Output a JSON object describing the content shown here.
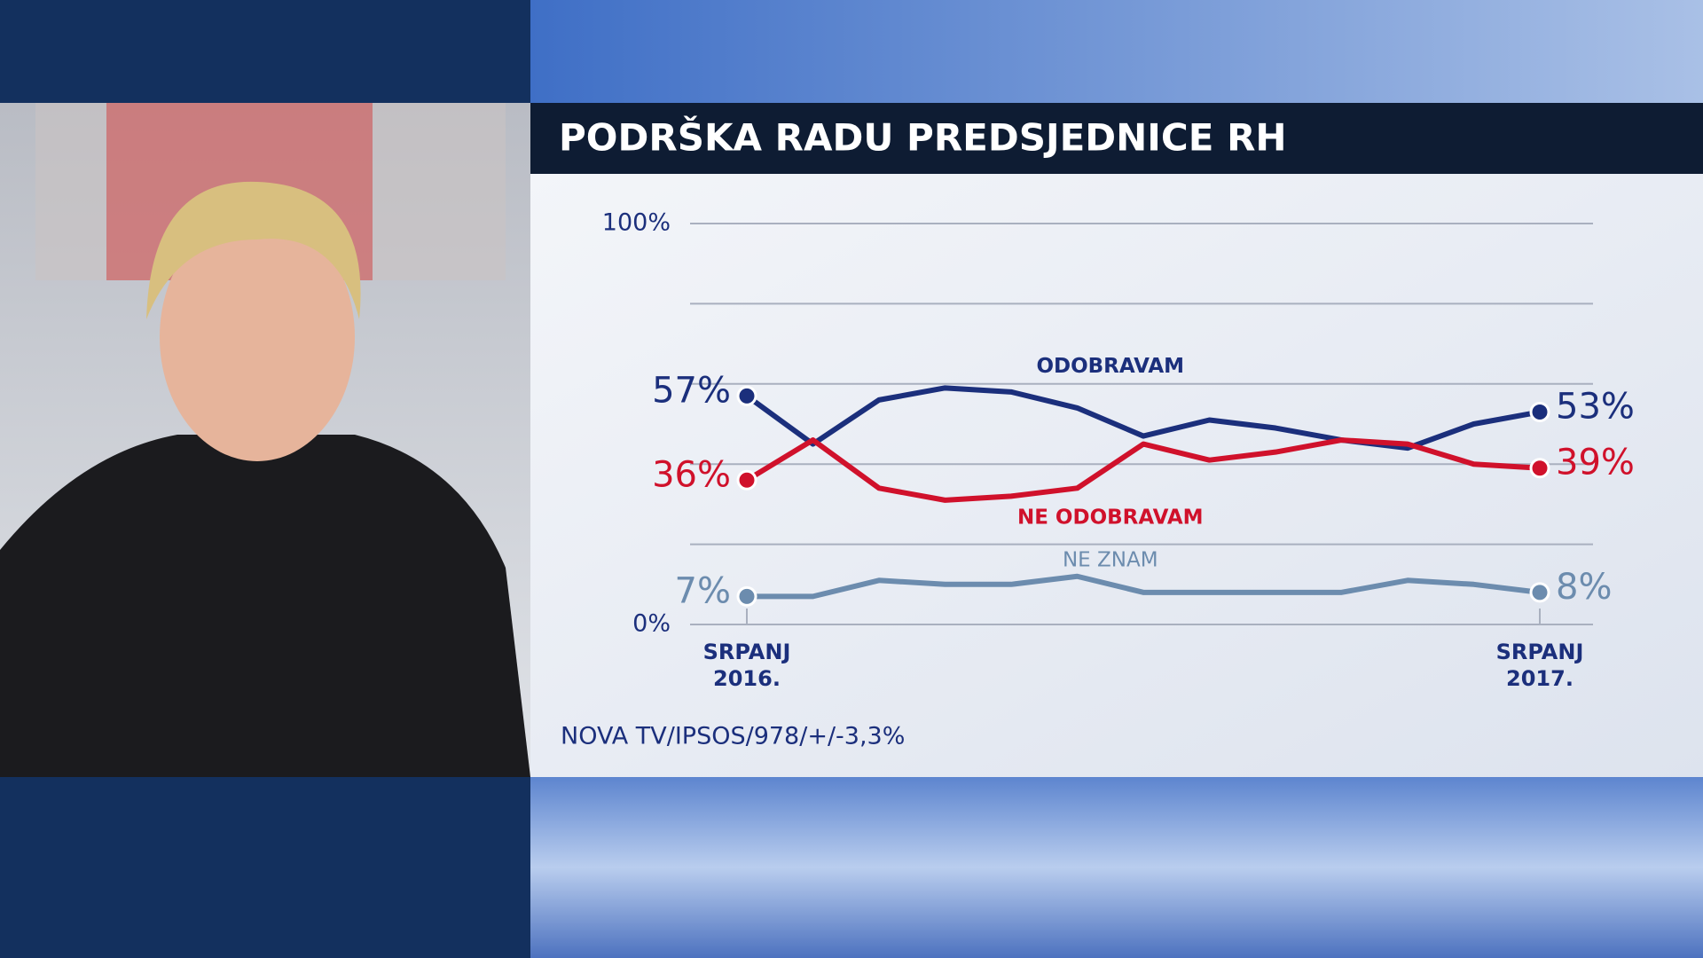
{
  "chart_data": {
    "type": "line",
    "title": "PODRŠKA RADU PREDSJEDNICE RH",
    "source": "NOVA TV/IPSOS/978/+/-3,3%",
    "categories": [
      "SRPANJ 2016.",
      null,
      null,
      null,
      null,
      null,
      null,
      null,
      null,
      null,
      null,
      null,
      "SRPANJ 2017."
    ],
    "ylim": [
      0,
      100
    ],
    "yticks": [
      {
        "value": 0,
        "label": "0%"
      },
      {
        "value": 20,
        "label": null
      },
      {
        "value": 40,
        "label": null
      },
      {
        "value": 60,
        "label": null
      },
      {
        "value": 80,
        "label": null
      },
      {
        "value": 100,
        "label": "100%"
      }
    ],
    "grid": true,
    "series": [
      {
        "name": "ODOBRAVAM",
        "color": "#1b2f7c",
        "values": [
          57,
          45,
          56,
          59,
          58,
          54,
          47,
          51,
          49,
          46,
          44,
          50,
          53
        ],
        "value_labels": [
          "57%",
          null,
          null,
          null,
          null,
          null,
          null,
          null,
          null,
          null,
          null,
          null,
          "53%"
        ]
      },
      {
        "name": "NE ODOBRAVAM",
        "color": "#d0112b",
        "values": [
          36,
          46,
          34,
          31,
          32,
          34,
          45,
          41,
          43,
          46,
          45,
          40,
          39
        ],
        "value_labels": [
          "36%",
          null,
          null,
          null,
          null,
          null,
          null,
          null,
          null,
          null,
          null,
          null,
          "39%"
        ]
      },
      {
        "name": "NE ZNAM",
        "color": "#6c8cae",
        "values": [
          7,
          7,
          11,
          10,
          10,
          12,
          8,
          8,
          8,
          8,
          11,
          10,
          8
        ],
        "value_labels": [
          "7%",
          null,
          null,
          null,
          null,
          null,
          null,
          null,
          null,
          null,
          null,
          null,
          "8%"
        ]
      }
    ]
  }
}
